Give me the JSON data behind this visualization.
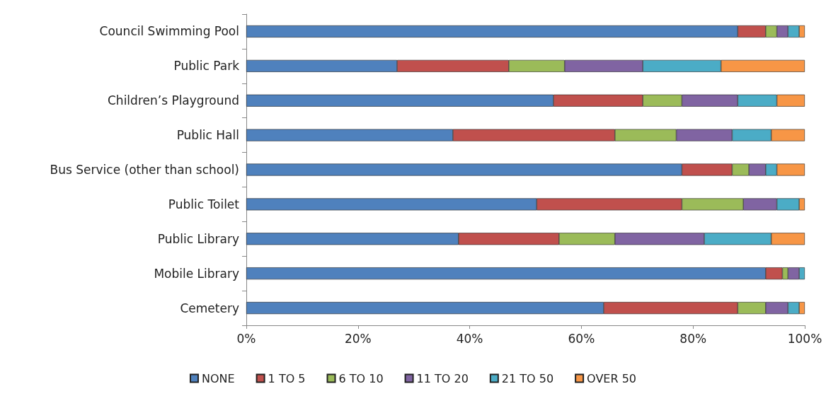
{
  "chart_data": {
    "type": "bar",
    "orientation": "horizontal",
    "stacked": true,
    "legend": "bottom",
    "grid": false,
    "categories": [
      "Council Swimming Pool",
      "Public Park",
      "Children’s Playground",
      "Public Hall",
      "Bus Service (other than school)",
      "Public Toilet",
      "Public Library",
      "Mobile Library",
      "Cemetery"
    ],
    "xlim": [
      0,
      100
    ],
    "xticks": [
      {
        "value": 0,
        "label": "0%"
      },
      {
        "value": 20,
        "label": "20%"
      },
      {
        "value": 40,
        "label": "40%"
      },
      {
        "value": 60,
        "label": "60%"
      },
      {
        "value": 80,
        "label": "80%"
      },
      {
        "value": 100,
        "label": "100%"
      }
    ],
    "series": [
      {
        "name": "NONE",
        "color": "#4f81bd",
        "values": [
          88,
          27,
          55,
          37,
          78,
          52,
          38,
          93,
          64
        ]
      },
      {
        "name": "1 TO 5",
        "color": "#c0504d",
        "values": [
          5,
          20,
          16,
          29,
          9,
          26,
          18,
          3,
          24
        ]
      },
      {
        "name": "6 TO 10",
        "color": "#9bbb59",
        "values": [
          2,
          10,
          7,
          11,
          3,
          11,
          10,
          1,
          5
        ]
      },
      {
        "name": "11 TO 20",
        "color": "#8064a2",
        "values": [
          2,
          14,
          10,
          10,
          3,
          6,
          16,
          2,
          4
        ]
      },
      {
        "name": "21 TO 50",
        "color": "#4bacc6",
        "values": [
          2,
          14,
          7,
          7,
          2,
          4,
          12,
          1,
          2
        ]
      },
      {
        "name": "OVER 50",
        "color": "#f79646",
        "values": [
          1,
          15,
          5,
          6,
          5,
          1,
          6,
          null,
          1
        ]
      }
    ]
  }
}
